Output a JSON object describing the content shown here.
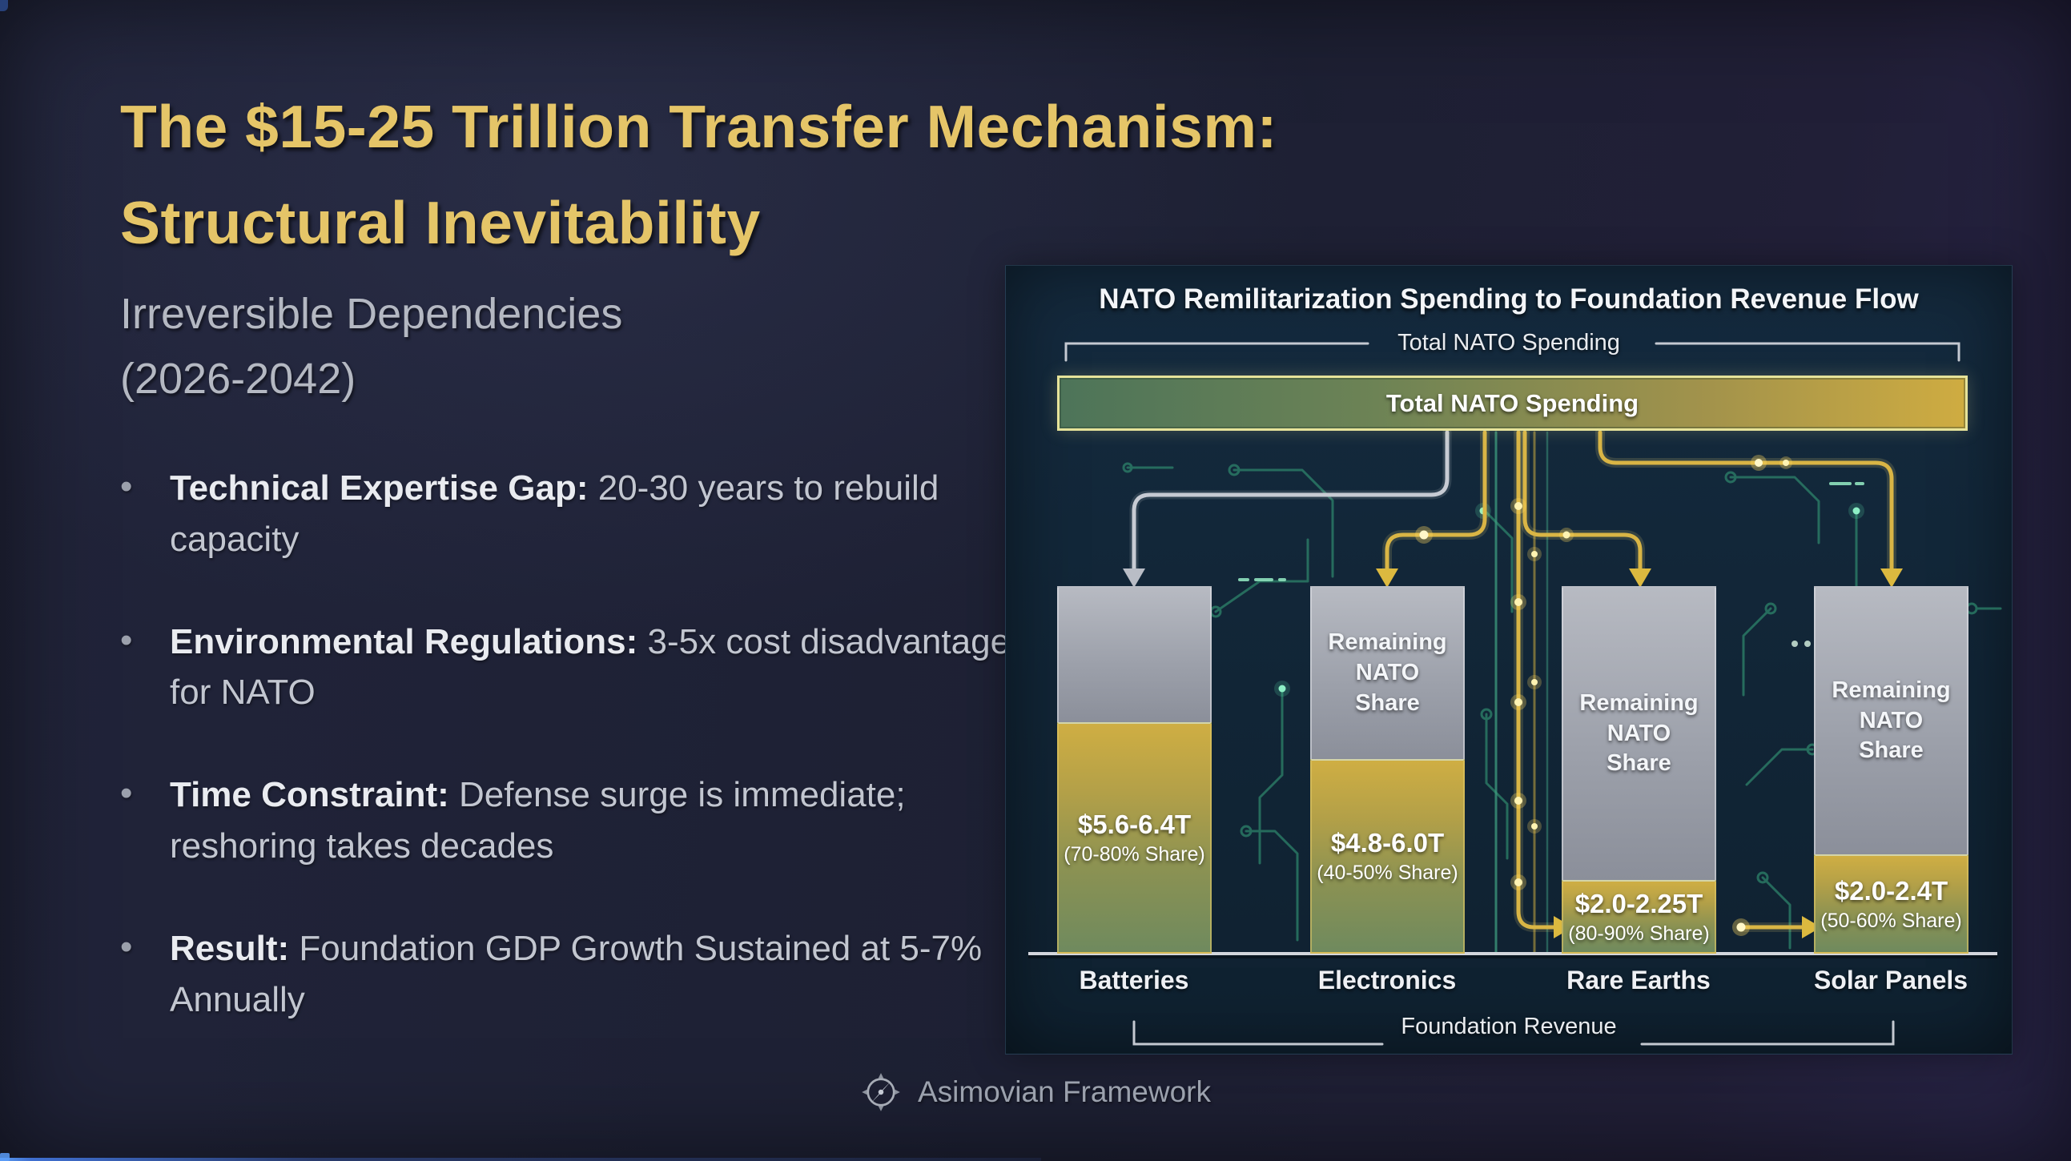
{
  "slide": {
    "title": "The $15-25 Trillion Transfer Mechanism:\nStructural Inevitability",
    "subtitle": "Irreversible Dependencies\n(2026-2042)",
    "bullet_glyph": "•",
    "bullets": [
      {
        "bold": "Technical Expertise Gap:",
        "text": "20-30 years to rebuild capacity"
      },
      {
        "bold": "Environmental Regulations:",
        "text": "3-5x cost disadvantage for NATO"
      },
      {
        "bold": "Time Constraint:",
        "text": "Defense surge is immediate; reshoring takes decades"
      },
      {
        "bold": "Result:",
        "text": "Foundation GDP Growth Sustained at 5-7% Annually"
      }
    ],
    "footer": {
      "brand": "Asimovian Framework",
      "icon": "compass-icon"
    },
    "colors": {
      "title_gold": "#e5c568",
      "background_navy": "#1d2033",
      "body_text": "#c2c6d0"
    }
  },
  "chart_data": {
    "type": "bar",
    "title": "NATO Remilitarization Spending to Foundation Revenue Flow",
    "top_bracket_label": "Total NATO Spending",
    "source_bar_label": "Total NATO Spending",
    "bottom_bracket_label": "Foundation Revenue",
    "categories": [
      "Batteries",
      "Electronics",
      "Rare Earths",
      "Solar Panels"
    ],
    "bars": [
      {
        "category": "Batteries",
        "foundation_value": "$5.6-6.4T",
        "foundation_share": "(70-80% Share)",
        "remaining_label": "",
        "gold_fraction": 0.63,
        "arrow_color": "silver"
      },
      {
        "category": "Electronics",
        "foundation_value": "$4.8-6.0T",
        "foundation_share": "(40-50% Share)",
        "remaining_label": "Remaining NATO Share",
        "gold_fraction": 0.53,
        "arrow_color": "gold"
      },
      {
        "category": "Rare Earths",
        "foundation_value": "$2.0-2.25T",
        "foundation_share": "(80-90% Share)",
        "remaining_label": "Remaining NATO Share",
        "gold_fraction": 0.2,
        "arrow_color": "gold"
      },
      {
        "category": "Solar Panels",
        "foundation_value": "$2.0-2.4T",
        "foundation_share": "(50-60% Share)",
        "remaining_label": "Remaining NATO Share",
        "gold_fraction": 0.27,
        "arrow_color": "gold"
      }
    ],
    "series": [
      {
        "name": "Foundation Revenue (gold segment)",
        "value_labels": [
          "$5.6-6.4T",
          "$4.8-6.0T",
          "$2.0-2.25T",
          "$2.0-2.4T"
        ]
      },
      {
        "name": "Remaining NATO Share (gray segment)",
        "value_labels": [
          "",
          "Remaining NATO Share",
          "Remaining NATO Share",
          "Remaining NATO Share"
        ]
      }
    ],
    "legend_position": "none",
    "grid": false,
    "colors": {
      "flow_gold": "#d9b545",
      "flow_silver": "#c7cbd3",
      "circuit_teal": "#2f8a6e",
      "bar_gray_top": "#b7bac2",
      "bar_gray_bottom": "#8b8f9a",
      "bar_gold_top": "#cfae43",
      "bar_gold_bottom": "#6f8a5e",
      "panel_background": "#112536"
    }
  }
}
